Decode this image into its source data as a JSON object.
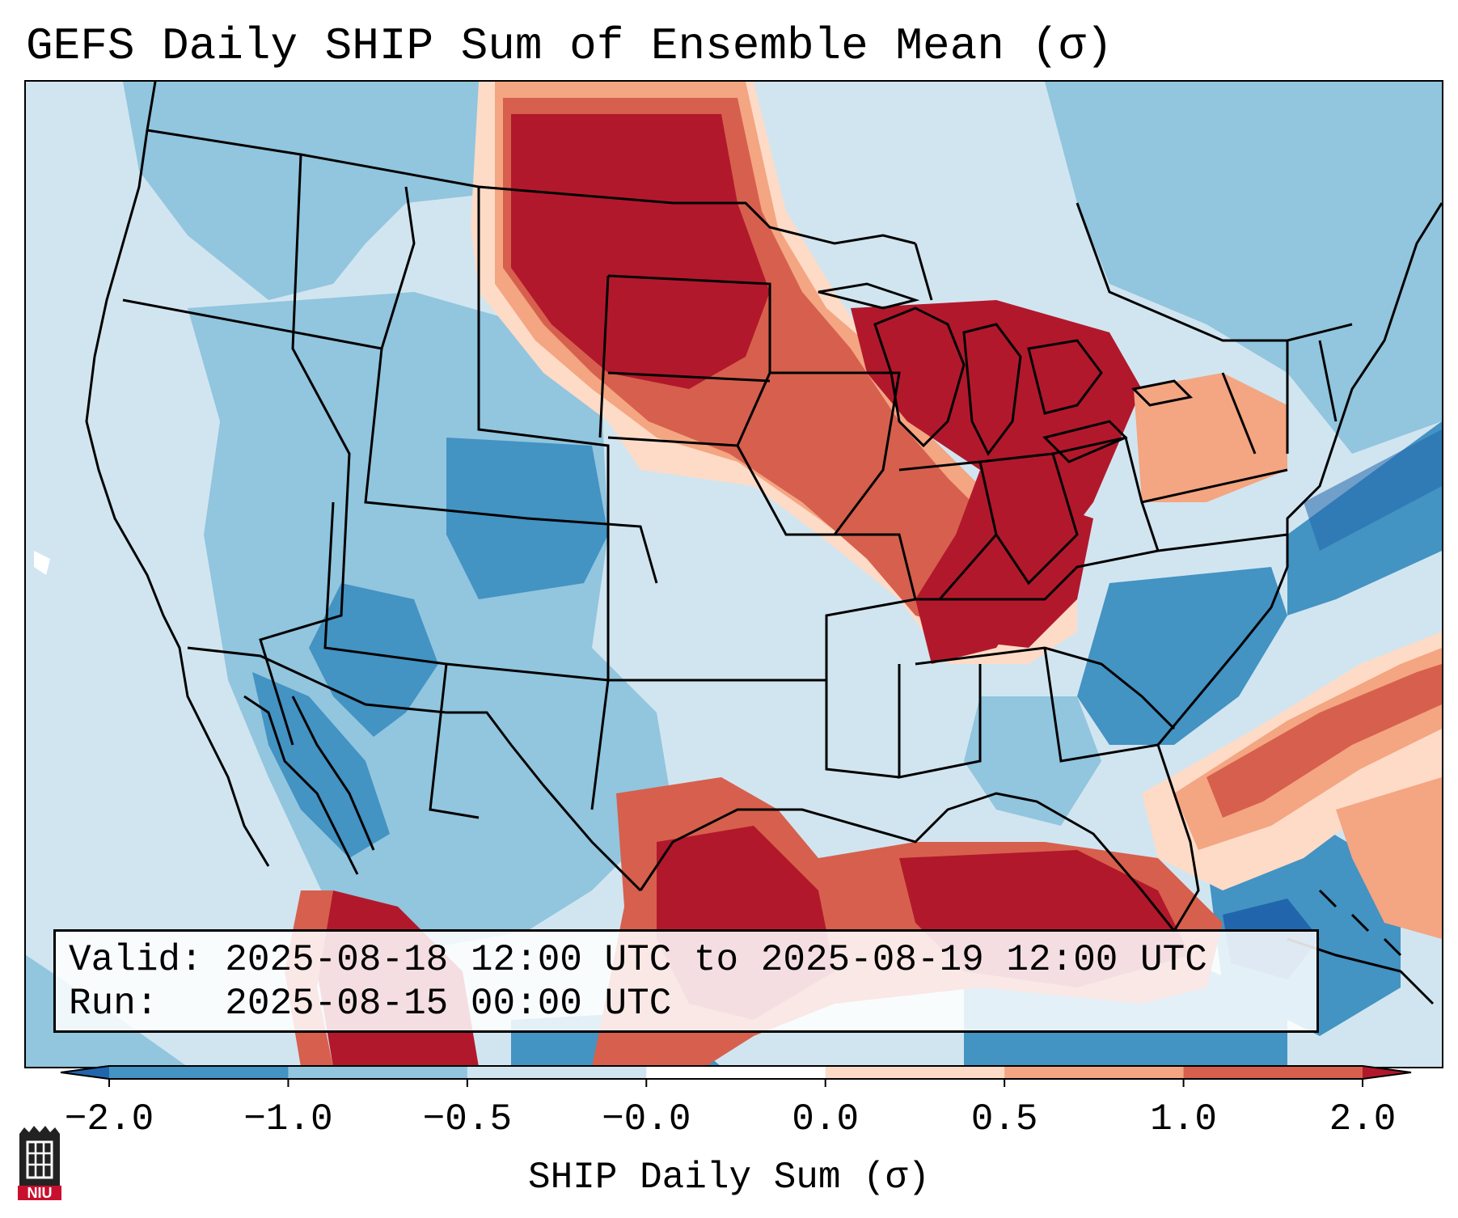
{
  "title": "GEFS Daily SHIP Sum of Ensemble Mean (σ)",
  "info": {
    "valid_line": "Valid: 2025-08-18 12:00 UTC to 2025-08-19 12:00 UTC",
    "run_line": "Run:   2025-08-15 00:00 UTC"
  },
  "colorbar": {
    "label": "SHIP Daily Sum (σ)",
    "ticks": [
      "−2.0",
      "−1.0",
      "−0.5",
      "−0.0",
      "0.0",
      "0.5",
      "1.0",
      "2.0"
    ],
    "bins": [
      {
        "range": "< -2.0",
        "color": "#2166ac"
      },
      {
        "range": "-2.0 to -1.0",
        "color": "#4393c3"
      },
      {
        "range": "-1.0 to -0.5",
        "color": "#92c5de"
      },
      {
        "range": "-0.5 to -0.0",
        "color": "#d1e5f0"
      },
      {
        "range": "-0.0 to 0.0",
        "color": "#ffffff"
      },
      {
        "range": "0.0 to 0.5",
        "color": "#fddbc7"
      },
      {
        "range": "0.5 to 1.0",
        "color": "#f4a582"
      },
      {
        "range": "1.0 to 2.0",
        "color": "#d6604d"
      },
      {
        "range": "> 2.0",
        "color": "#b2182b"
      }
    ]
  },
  "logo": {
    "text": "NIU",
    "icon": "niu-logo-icon"
  },
  "map": {
    "projection": "Lambert conformal, CONUS",
    "background_color": "#d1e5f0",
    "boundary_color": "#000000"
  }
}
